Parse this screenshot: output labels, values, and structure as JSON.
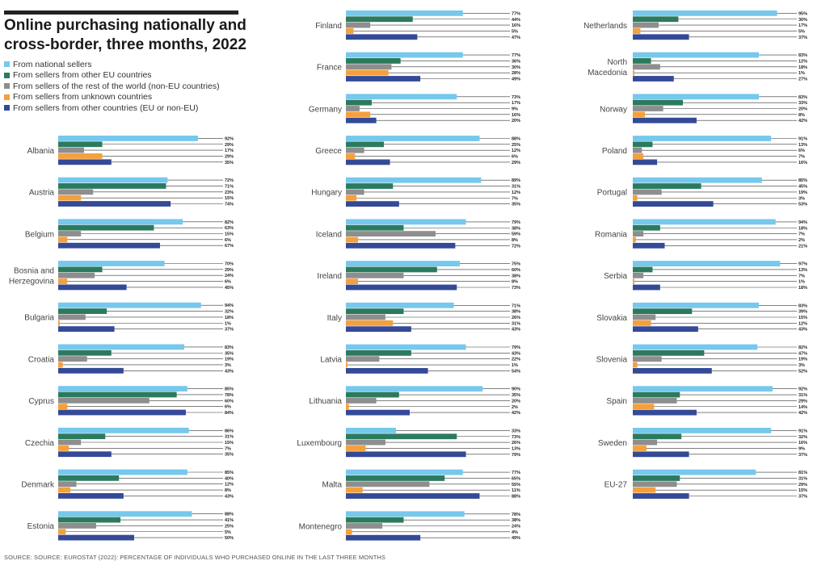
{
  "title": "Online purchasing nationally and cross-border, three months, 2022",
  "source": "SOURCE: SOURCE: EUROSTAT (2022): PERCENTAGE OF INDIVIDUALS WHO PURCHASED ONLINE IN THE LAST THREE MONTHS",
  "colors": {
    "national": "#76c8ec",
    "other_eu": "#2c7a5e",
    "non_eu": "#8e8e8e",
    "unknown": "#f4a03c",
    "other_any": "#344a96",
    "line": "#333333"
  },
  "chart_data": {
    "type": "bar",
    "orientation": "horizontal",
    "unit": "%",
    "xlim": [
      0,
      100
    ],
    "grid": false,
    "legend_position": "top-left",
    "series": [
      {
        "key": "national",
        "name": "From national sellers"
      },
      {
        "key": "other_eu",
        "name": "From sellers from other EU countries"
      },
      {
        "key": "non_eu",
        "name": "From sellers of the rest of the world (non-EU countries)"
      },
      {
        "key": "unknown",
        "name": "From sellers from unknown countries"
      },
      {
        "key": "other_any",
        "name": "From sellers from other countries (EU or non-EU)"
      }
    ],
    "countries": [
      {
        "name": "Albania",
        "values": [
          92,
          29,
          17,
          29,
          35
        ]
      },
      {
        "name": "Austria",
        "values": [
          72,
          71,
          23,
          15,
          74
        ]
      },
      {
        "name": "Belgium",
        "values": [
          82,
          63,
          15,
          6,
          67
        ]
      },
      {
        "name": "Bosnia and Herzegovina",
        "values": [
          70,
          29,
          24,
          6,
          45
        ]
      },
      {
        "name": "Bulgaria",
        "values": [
          94,
          32,
          18,
          1,
          37
        ]
      },
      {
        "name": "Croatia",
        "values": [
          83,
          35,
          19,
          3,
          43
        ]
      },
      {
        "name": "Cyprus",
        "values": [
          85,
          78,
          60,
          6,
          84
        ]
      },
      {
        "name": "Czechia",
        "values": [
          86,
          31,
          15,
          7,
          35
        ]
      },
      {
        "name": "Denmark",
        "values": [
          85,
          40,
          12,
          8,
          43
        ]
      },
      {
        "name": "Estonia",
        "values": [
          88,
          41,
          25,
          5,
          50
        ]
      },
      {
        "name": "Finland",
        "values": [
          77,
          44,
          16,
          5,
          47
        ]
      },
      {
        "name": "France",
        "values": [
          77,
          36,
          30,
          28,
          49
        ]
      },
      {
        "name": "Germany",
        "values": [
          73,
          17,
          9,
          16,
          20
        ]
      },
      {
        "name": "Greece",
        "values": [
          88,
          25,
          12,
          6,
          29
        ]
      },
      {
        "name": "Hungary",
        "values": [
          89,
          31,
          12,
          7,
          35
        ]
      },
      {
        "name": "Iceland",
        "values": [
          79,
          38,
          59,
          8,
          72
        ]
      },
      {
        "name": "Ireland",
        "values": [
          75,
          60,
          38,
          8,
          73
        ]
      },
      {
        "name": "Italy",
        "values": [
          71,
          38,
          26,
          31,
          43
        ]
      },
      {
        "name": "Latvia",
        "values": [
          79,
          43,
          22,
          1,
          54
        ]
      },
      {
        "name": "Lithuania",
        "values": [
          90,
          35,
          20,
          2,
          42
        ]
      },
      {
        "name": "Luxembourg",
        "values": [
          33,
          73,
          26,
          13,
          79
        ]
      },
      {
        "name": "Malta",
        "values": [
          77,
          65,
          55,
          11,
          88
        ]
      },
      {
        "name": "Montenegro",
        "values": [
          78,
          38,
          24,
          4,
          49
        ]
      },
      {
        "name": "Netherlands",
        "values": [
          95,
          30,
          17,
          5,
          37
        ]
      },
      {
        "name": "North Macedonia",
        "values": [
          83,
          12,
          18,
          1,
          27
        ]
      },
      {
        "name": "Norway",
        "values": [
          83,
          33,
          20,
          8,
          42
        ]
      },
      {
        "name": "Poland",
        "values": [
          91,
          13,
          6,
          7,
          16
        ]
      },
      {
        "name": "Portugal",
        "values": [
          85,
          45,
          19,
          3,
          53
        ]
      },
      {
        "name": "Romania",
        "values": [
          94,
          18,
          7,
          2,
          21
        ]
      },
      {
        "name": "Serbia",
        "values": [
          97,
          13,
          7,
          1,
          18
        ]
      },
      {
        "name": "Slovakia",
        "values": [
          83,
          39,
          15,
          12,
          43
        ]
      },
      {
        "name": "Slovenia",
        "values": [
          82,
          47,
          19,
          3,
          52
        ]
      },
      {
        "name": "Spain",
        "values": [
          92,
          31,
          29,
          14,
          42
        ]
      },
      {
        "name": "Sweden",
        "values": [
          91,
          32,
          16,
          9,
          37
        ]
      },
      {
        "name": "EU-27",
        "values": [
          81,
          31,
          29,
          15,
          37
        ]
      }
    ]
  }
}
